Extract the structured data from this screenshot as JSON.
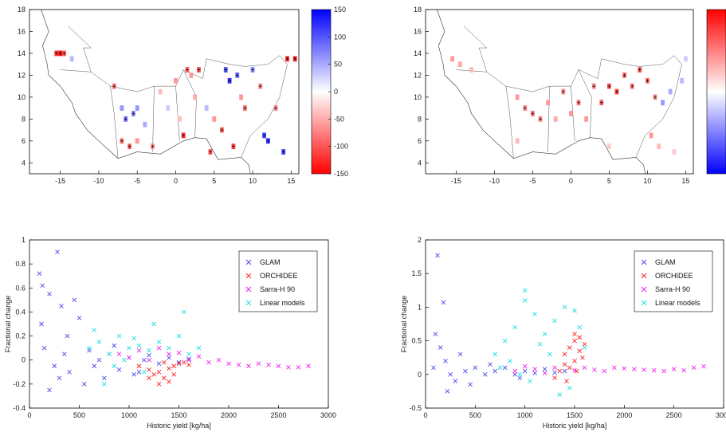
{
  "chart_data": [
    {
      "type": "heatmap",
      "panel": "map-left",
      "xlim": [
        -19,
        16
      ],
      "ylim": [
        3,
        18
      ],
      "xticks": [
        "-15",
        "-10",
        "-5",
        "0",
        "5",
        "10",
        "15"
      ],
      "yticks": [
        "4",
        "6",
        "8",
        "10",
        "12",
        "14",
        "16",
        "18"
      ],
      "colorbar": {
        "min": -150,
        "max": 150,
        "ticks": [
          "150",
          "100",
          "50",
          "0",
          "-50",
          "-100",
          "-150"
        ],
        "colors": [
          "#0000ff",
          "#ffffff",
          "#ff0000"
        ]
      },
      "cells": [
        [
          -15.5,
          14,
          -120
        ],
        [
          -15,
          14,
          -140
        ],
        [
          -14.5,
          14,
          -100
        ],
        [
          -13.5,
          13.5,
          40
        ],
        [
          -8,
          11,
          -80
        ],
        [
          -7,
          9,
          60
        ],
        [
          -6.5,
          8,
          80
        ],
        [
          -5.5,
          8.5,
          70
        ],
        [
          -5,
          9,
          60
        ],
        [
          -4,
          7.5,
          50
        ],
        [
          -7,
          6,
          -80
        ],
        [
          -6,
          5.5,
          -90
        ],
        [
          -5,
          6,
          -60
        ],
        [
          -3,
          5.5,
          -70
        ],
        [
          -2,
          10.5,
          -40
        ],
        [
          -1,
          9,
          30
        ],
        [
          0,
          11.5,
          -60
        ],
        [
          0.5,
          8,
          -40
        ],
        [
          1,
          6.5,
          -120
        ],
        [
          1.5,
          12.5,
          -90
        ],
        [
          2,
          12,
          -60
        ],
        [
          3,
          12.5,
          -100
        ],
        [
          2.5,
          10,
          -50
        ],
        [
          4,
          9,
          40
        ],
        [
          5,
          8,
          -60
        ],
        [
          6,
          7,
          -90
        ],
        [
          6.5,
          12.5,
          100
        ],
        [
          7,
          11.5,
          120
        ],
        [
          8,
          12,
          90
        ],
        [
          8.5,
          10,
          -60
        ],
        [
          9,
          9,
          -80
        ],
        [
          10,
          12.5,
          70
        ],
        [
          11,
          11,
          -70
        ],
        [
          11.5,
          6.5,
          110
        ],
        [
          12,
          6,
          120
        ],
        [
          7.5,
          5.5,
          -110
        ],
        [
          13,
          9,
          -70
        ],
        [
          14.5,
          13.5,
          -130
        ],
        [
          15.5,
          13.5,
          -130
        ],
        [
          14,
          5,
          110
        ],
        [
          4.5,
          5,
          -100
        ]
      ]
    },
    {
      "type": "heatmap",
      "panel": "map-right",
      "xlim": [
        -19,
        16
      ],
      "ylim": [
        3,
        18
      ],
      "xticks": [
        "-15",
        "-10",
        "-5",
        "0",
        "5",
        "10",
        "15"
      ],
      "yticks": [
        "4",
        "6",
        "8",
        "10",
        "12",
        "14",
        "16",
        "18"
      ],
      "colorbar": {
        "colors": [
          "#ff0000",
          "#ffffff",
          "#0000ff"
        ]
      },
      "cells": [
        [
          -15.5,
          13.5,
          -60
        ],
        [
          -14.5,
          13,
          -50
        ],
        [
          -13,
          12.5,
          -40
        ],
        [
          -7,
          10,
          -60
        ],
        [
          -6,
          9,
          -70
        ],
        [
          -5,
          8.5,
          -80
        ],
        [
          -4,
          8,
          -70
        ],
        [
          -3,
          9.5,
          -60
        ],
        [
          -2,
          8,
          -50
        ],
        [
          -1,
          10.5,
          -70
        ],
        [
          0,
          8.5,
          -60
        ],
        [
          1,
          9.5,
          -80
        ],
        [
          2,
          8,
          -60
        ],
        [
          3,
          11,
          -70
        ],
        [
          4,
          9.5,
          -90
        ],
        [
          5,
          11,
          -100
        ],
        [
          6,
          10.5,
          -110
        ],
        [
          7,
          12,
          -90
        ],
        [
          8,
          11,
          -80
        ],
        [
          9,
          12.5,
          -100
        ],
        [
          10,
          11.5,
          -90
        ],
        [
          11,
          10,
          -70
        ],
        [
          12,
          9.5,
          60
        ],
        [
          13,
          10.5,
          50
        ],
        [
          14.5,
          11.5,
          40
        ],
        [
          15,
          13.5,
          30
        ],
        [
          10.5,
          6.5,
          -60
        ],
        [
          11.5,
          5.5,
          -40
        ],
        [
          13.5,
          5,
          -30
        ],
        [
          -7,
          6,
          -40
        ],
        [
          5,
          5.5,
          -30
        ]
      ]
    },
    {
      "type": "scatter",
      "panel": "scatter-left",
      "xlabel": "Historic yield [kg/ha]",
      "ylabel": "Fractional change",
      "xlim": [
        0,
        3000
      ],
      "ylim": [
        -0.4,
        1
      ],
      "xticks": [
        "0",
        "500",
        "1000",
        "1500",
        "2000",
        "2500",
        "3000"
      ],
      "yticks": [
        "1",
        "0.8",
        "0.6",
        "0.4",
        "0.2",
        "0",
        "-0.2",
        "-0.4"
      ],
      "legend_position": "top-right",
      "series": [
        {
          "name": "GLAM",
          "color": "#4a4af0",
          "points": [
            [
              100,
              0.72
            ],
            [
              130,
              0.62
            ],
            [
              200,
              0.55
            ],
            [
              280,
              0.9
            ],
            [
              320,
              0.45
            ],
            [
              450,
              0.5
            ],
            [
              500,
              0.35
            ],
            [
              150,
              0.1
            ],
            [
              250,
              -0.05
            ],
            [
              300,
              -0.15
            ],
            [
              350,
              0.05
            ],
            [
              400,
              -0.1
            ],
            [
              600,
              0.08
            ],
            [
              650,
              -0.05
            ],
            [
              700,
              0.0
            ],
            [
              800,
              0.05
            ],
            [
              900,
              -0.08
            ],
            [
              1000,
              0.02
            ],
            [
              1100,
              -0.1
            ],
            [
              1200,
              0.04
            ],
            [
              1300,
              -0.03
            ],
            [
              1400,
              0.02
            ],
            [
              1500,
              -0.02
            ],
            [
              1600,
              0.01
            ],
            [
              550,
              -0.2
            ],
            [
              750,
              -0.15
            ],
            [
              1050,
              -0.12
            ],
            [
              200,
              -0.25
            ],
            [
              120,
              0.3
            ],
            [
              380,
              0.2
            ],
            [
              850,
              0.12
            ],
            [
              1150,
              0.0
            ]
          ]
        },
        {
          "name": "ORCHIDEE",
          "color": "#ff2020",
          "points": [
            [
              1100,
              -0.05
            ],
            [
              1200,
              -0.08
            ],
            [
              1250,
              -0.12
            ],
            [
              1300,
              -0.1
            ],
            [
              1350,
              -0.15
            ],
            [
              1400,
              -0.07
            ],
            [
              1450,
              -0.05
            ],
            [
              1500,
              -0.03
            ],
            [
              1550,
              -0.02
            ],
            [
              1600,
              -0.04
            ],
            [
              1300,
              -0.2
            ],
            [
              1400,
              -0.18
            ],
            [
              1200,
              -0.15
            ],
            [
              1350,
              -0.02
            ],
            [
              1450,
              -0.12
            ]
          ]
        },
        {
          "name": "Sarra-H 90",
          "color": "#ee22ee",
          "points": [
            [
              900,
              0.05
            ],
            [
              1000,
              0.02
            ],
            [
              1200,
              0.0
            ],
            [
              1400,
              0.05
            ],
            [
              1600,
              0.0
            ],
            [
              1800,
              -0.02
            ],
            [
              2000,
              -0.03
            ],
            [
              2200,
              -0.05
            ],
            [
              2400,
              -0.04
            ],
            [
              2600,
              -0.06
            ],
            [
              2800,
              -0.05
            ],
            [
              1700,
              0.03
            ],
            [
              1900,
              0.0
            ],
            [
              2100,
              -0.04
            ],
            [
              2300,
              -0.03
            ],
            [
              2500,
              -0.05
            ],
            [
              2700,
              -0.06
            ],
            [
              1100,
              0.08
            ],
            [
              1300,
              0.1
            ],
            [
              1500,
              0.06
            ]
          ]
        },
        {
          "name": "Linear models",
          "color": "#20e0e0",
          "points": [
            [
              600,
              0.1
            ],
            [
              700,
              0.15
            ],
            [
              800,
              0.05
            ],
            [
              900,
              0.2
            ],
            [
              1000,
              0.1
            ],
            [
              1100,
              0.12
            ],
            [
              1200,
              0.08
            ],
            [
              1300,
              0.15
            ],
            [
              1400,
              0.1
            ],
            [
              1500,
              0.2
            ],
            [
              1600,
              0.05
            ],
            [
              1700,
              0.1
            ],
            [
              850,
              -0.05
            ],
            [
              950,
              0.0
            ],
            [
              1050,
              0.18
            ],
            [
              1250,
              0.3
            ],
            [
              1550,
              0.4
            ],
            [
              1150,
              -0.1
            ],
            [
              750,
              -0.2
            ],
            [
              650,
              0.25
            ]
          ]
        }
      ]
    },
    {
      "type": "scatter",
      "panel": "scatter-right",
      "xlabel": "Historic yield [kg/ha]",
      "ylabel": "Fractional change",
      "xlim": [
        0,
        3000
      ],
      "ylim": [
        -0.5,
        2
      ],
      "xticks": [
        "0",
        "500",
        "1000",
        "1500",
        "2000",
        "2500",
        "3000"
      ],
      "yticks": [
        "2",
        "1.5",
        "1",
        "0.5",
        "0",
        "-0.5"
      ],
      "legend_position": "top-right",
      "series": [
        {
          "name": "GLAM",
          "color": "#4a4af0",
          "points": [
            [
              120,
              1.77
            ],
            [
              180,
              1.07
            ],
            [
              100,
              0.6
            ],
            [
              150,
              0.4
            ],
            [
              200,
              0.2
            ],
            [
              80,
              0.1
            ],
            [
              250,
              0.0
            ],
            [
              300,
              -0.1
            ],
            [
              400,
              0.05
            ],
            [
              500,
              0.1
            ],
            [
              600,
              0.0
            ],
            [
              700,
              0.05
            ],
            [
              800,
              0.1
            ],
            [
              900,
              0.0
            ],
            [
              1000,
              0.05
            ],
            [
              1100,
              0.02
            ],
            [
              1200,
              0.08
            ],
            [
              1300,
              0.03
            ],
            [
              1400,
              0.05
            ],
            [
              350,
              0.3
            ],
            [
              450,
              -0.15
            ],
            [
              220,
              -0.25
            ],
            [
              650,
              0.15
            ],
            [
              950,
              -0.05
            ]
          ]
        },
        {
          "name": "ORCHIDEE",
          "color": "#ff2020",
          "points": [
            [
              1400,
              0.3
            ],
            [
              1450,
              0.4
            ],
            [
              1500,
              0.5
            ],
            [
              1550,
              0.55
            ],
            [
              1600,
              0.45
            ],
            [
              1500,
              0.2
            ],
            [
              1450,
              0.1
            ],
            [
              1550,
              0.35
            ],
            [
              1400,
              0.15
            ],
            [
              1350,
              0.05
            ],
            [
              1300,
              -0.05
            ],
            [
              1500,
              0.6
            ],
            [
              1580,
              0.25
            ],
            [
              1420,
              -0.1
            ],
            [
              1520,
              0.05
            ]
          ]
        },
        {
          "name": "Sarra-H 90",
          "color": "#ee22ee",
          "points": [
            [
              900,
              0.05
            ],
            [
              1100,
              0.08
            ],
            [
              1300,
              0.1
            ],
            [
              1500,
              0.06
            ],
            [
              1700,
              0.07
            ],
            [
              1900,
              0.1
            ],
            [
              2100,
              0.08
            ],
            [
              2300,
              0.06
            ],
            [
              2500,
              0.08
            ],
            [
              2700,
              0.1
            ],
            [
              2800,
              0.12
            ],
            [
              1000,
              0.12
            ],
            [
              1200,
              0.02
            ],
            [
              1600,
              0.1
            ],
            [
              1800,
              0.05
            ],
            [
              2000,
              0.09
            ],
            [
              2200,
              0.07
            ],
            [
              2400,
              0.05
            ],
            [
              2600,
              0.06
            ]
          ]
        },
        {
          "name": "Linear models",
          "color": "#20e0e0",
          "points": [
            [
              700,
              0.3
            ],
            [
              800,
              0.5
            ],
            [
              900,
              0.7
            ],
            [
              1000,
              1.1
            ],
            [
              1100,
              0.9
            ],
            [
              1200,
              0.6
            ],
            [
              1300,
              0.8
            ],
            [
              1400,
              1.0
            ],
            [
              1500,
              0.95
            ],
            [
              1600,
              0.4
            ],
            [
              1000,
              1.25
            ],
            [
              850,
              0.2
            ],
            [
              950,
              0.0
            ],
            [
              1050,
              -0.1
            ],
            [
              1250,
              0.3
            ],
            [
              1350,
              -0.3
            ],
            [
              1450,
              -0.2
            ],
            [
              1150,
              0.45
            ],
            [
              750,
              0.1
            ],
            [
              1550,
              0.7
            ]
          ]
        }
      ]
    }
  ]
}
